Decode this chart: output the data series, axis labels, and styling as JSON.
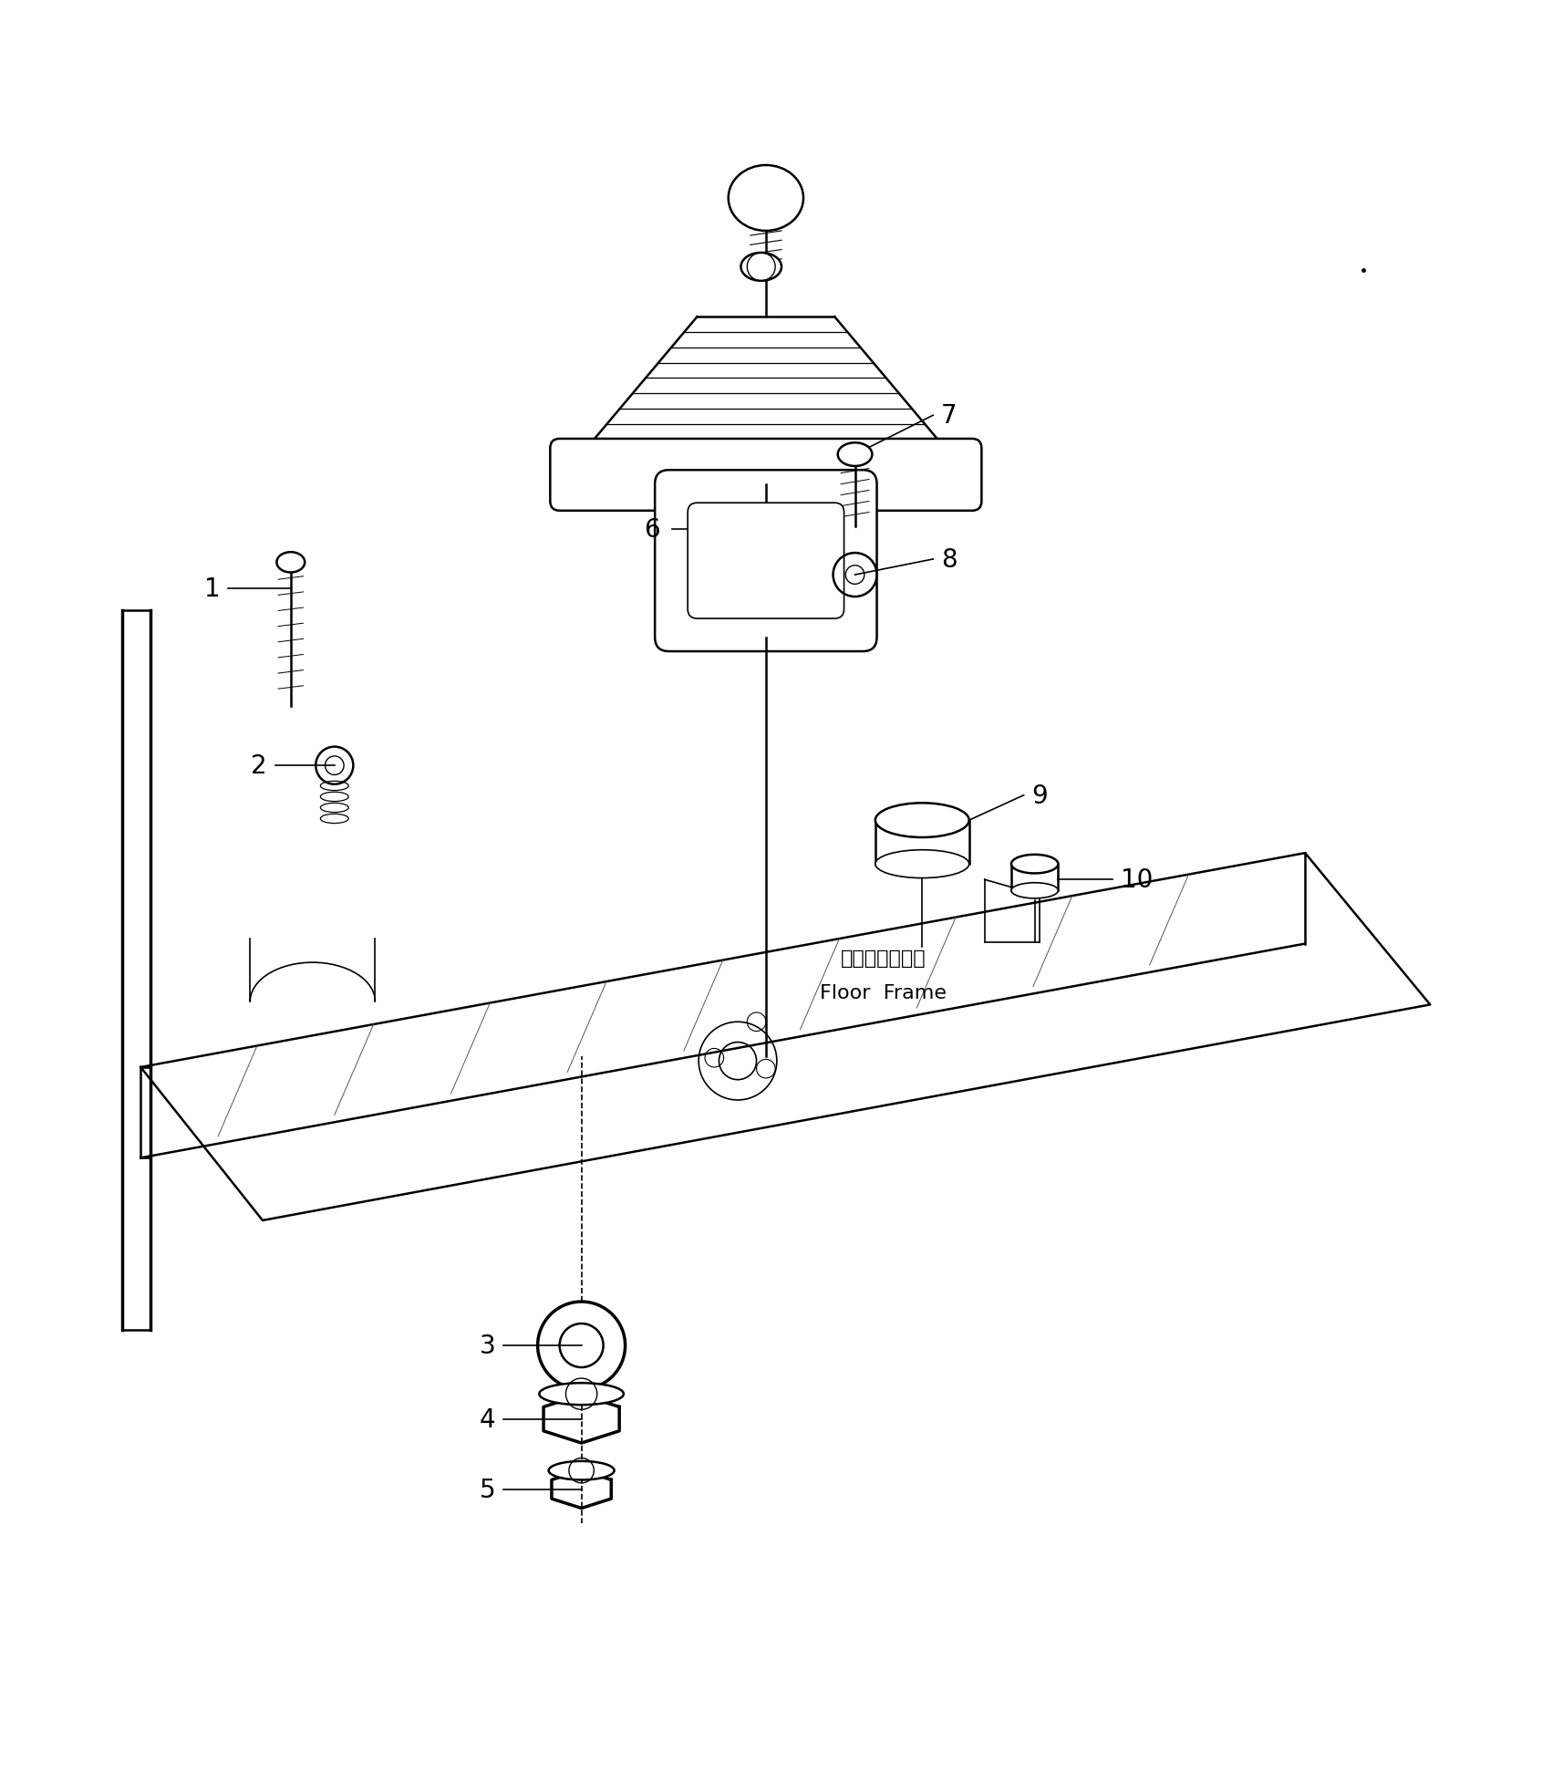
{
  "bg_color": "#ffffff",
  "line_color": "#000000",
  "fig_width": 17.14,
  "fig_height": 19.58,
  "floor_frame_text_jp": "フロアフレーム",
  "floor_frame_text_en": "Floor  Frame"
}
